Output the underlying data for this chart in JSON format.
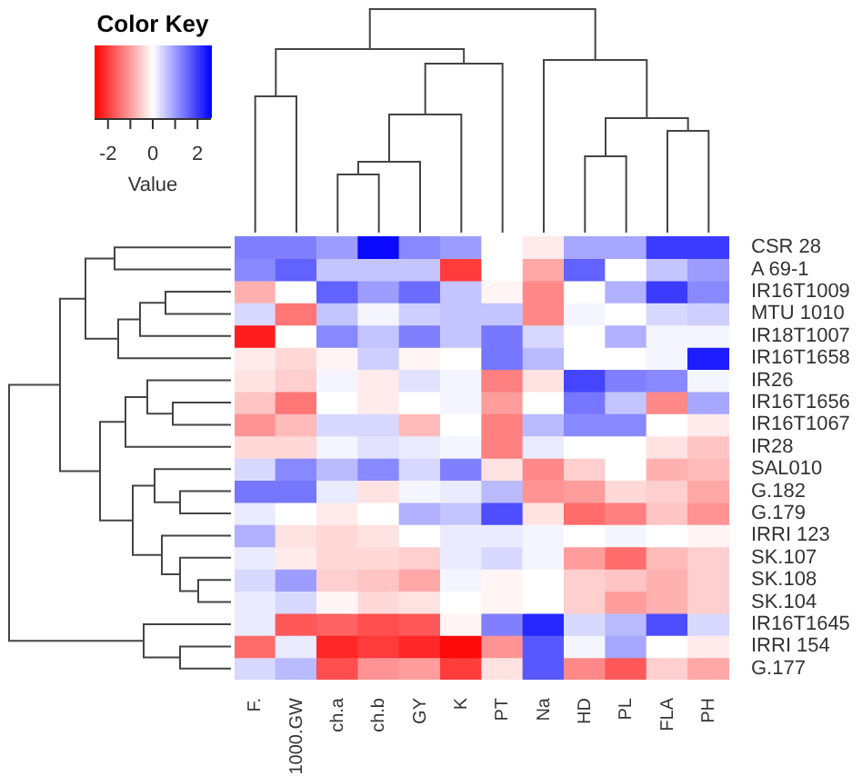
{
  "chart_data": {
    "type": "heatmap",
    "legend_title": "Color Key",
    "clabel": "Value",
    "categories": [
      "F.",
      "1000.GW",
      "ch.a",
      "ch.b",
      "GY",
      "K",
      "PT",
      "Na",
      "HD",
      "PL",
      "FLA",
      "PH"
    ],
    "y_categories": [
      "CSR 28",
      "A 69-1",
      "IR16T1009",
      "MTU 1010",
      "IR18T1007",
      "IR16T1658",
      "IR26",
      "IR16T1656",
      "IR16T1067",
      "IR28",
      "SAL010",
      "G.182",
      "G.179",
      "IRRI 123",
      "SK.107",
      "SK.108",
      "SK.104",
      "IR16T1645",
      "IRRI 154",
      "G.177"
    ],
    "cells": [
      [
        1.3,
        1.3,
        1.0,
        2.5,
        1.2,
        1.0,
        0,
        -0.2,
        0.9,
        0.9,
        2.0,
        2.0
      ],
      [
        1.2,
        1.6,
        0.6,
        0.6,
        0.6,
        -2.0,
        0,
        -0.9,
        1.6,
        0,
        0.6,
        1.0
      ],
      [
        -0.8,
        0,
        1.6,
        1.0,
        1.5,
        0.6,
        -0.1,
        -1.2,
        0,
        0.8,
        2.0,
        1.2
      ],
      [
        0.4,
        -1.4,
        0.6,
        0.1,
        0.5,
        0.6,
        0.6,
        -1.2,
        0.1,
        0,
        0.4,
        0.5
      ],
      [
        -2.3,
        0,
        1.2,
        0.6,
        1.3,
        0.6,
        1.4,
        0.4,
        0,
        0.8,
        0.1,
        0.1
      ],
      [
        -0.2,
        -0.4,
        -0.1,
        0.5,
        -0.1,
        0,
        1.4,
        0.7,
        0,
        0,
        0.1,
        2.3
      ],
      [
        -0.3,
        -0.5,
        0.1,
        -0.2,
        0.3,
        0.1,
        -1.3,
        -0.3,
        1.9,
        1.3,
        1.2,
        0.1
      ],
      [
        -0.6,
        -1.4,
        0,
        -0.2,
        0,
        0.1,
        -1.0,
        0,
        1.4,
        0.6,
        -1.2,
        0.9
      ],
      [
        -1.1,
        -0.7,
        0.4,
        0.4,
        -0.7,
        0,
        -1.3,
        0.7,
        1.2,
        1.2,
        0,
        -0.2
      ],
      [
        -0.4,
        -0.4,
        0.1,
        0.3,
        0.2,
        0.1,
        -1.3,
        0.2,
        0,
        0,
        -0.3,
        -0.6
      ],
      [
        0.4,
        1.2,
        0.7,
        1.2,
        0.4,
        1.3,
        -0.3,
        -1.2,
        -0.5,
        0,
        -0.8,
        -0.7
      ],
      [
        1.4,
        1.4,
        0.2,
        -0.3,
        0.1,
        0.2,
        0.7,
        -1.1,
        -1.0,
        -0.4,
        -0.5,
        -0.9
      ],
      [
        0.2,
        0,
        -0.2,
        0,
        0.8,
        0.6,
        1.8,
        -0.3,
        -1.5,
        -1.3,
        -0.6,
        -1.1
      ],
      [
        0.8,
        -0.3,
        -0.4,
        -0.3,
        0,
        0.2,
        0.2,
        0.1,
        0,
        0.1,
        0,
        -0.1
      ],
      [
        0.2,
        -0.2,
        -0.4,
        -0.4,
        -0.5,
        0.2,
        0.4,
        0.1,
        -1.0,
        -1.5,
        -0.7,
        -0.5
      ],
      [
        0.4,
        1.0,
        -0.5,
        -0.6,
        -0.9,
        0.1,
        -0.1,
        0,
        -0.5,
        -0.6,
        -0.8,
        -0.5
      ],
      [
        0.2,
        0.4,
        -0.1,
        -0.4,
        -0.3,
        0,
        -0.1,
        0,
        -0.5,
        -1.0,
        -0.8,
        -0.5
      ],
      [
        0.2,
        -1.7,
        -1.6,
        -1.8,
        -1.7,
        -0.1,
        1.3,
        2.2,
        0.4,
        0.7,
        1.8,
        0.4
      ],
      [
        -1.5,
        0.2,
        -2.2,
        -2.0,
        -2.2,
        -2.5,
        -1.1,
        1.7,
        0.1,
        0.9,
        0,
        -0.2
      ],
      [
        0.4,
        0.7,
        -1.8,
        -1.1,
        -1.0,
        -2.0,
        -0.3,
        1.7,
        -1.2,
        -1.7,
        -0.5,
        -0.9
      ]
    ],
    "clim": [
      -2.6,
      2.6
    ],
    "cticks": [
      -2,
      {
        "value": -1,
        "label": null
      },
      0,
      {
        "value": 1,
        "label": null
      },
      2
    ]
  }
}
